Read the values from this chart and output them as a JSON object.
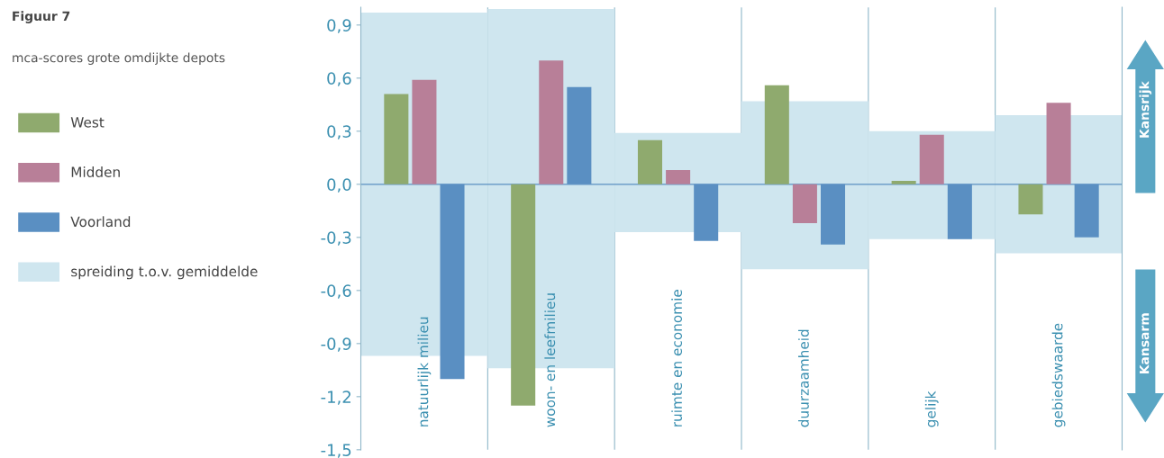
{
  "chart_data": {
    "type": "bar",
    "title": "Figuur 7",
    "subtitle": "mca-scores grote omdijkte depots",
    "categories": [
      "natuurlijk milieu",
      "woon- en leefmilieu",
      "ruimte en economie",
      "duurzaamheid",
      "gelijk",
      "gebiedswaarde"
    ],
    "series": [
      {
        "name": "spreiding t.o.v. gemiddelde",
        "type": "bar",
        "color": "#cfe6ef",
        "base": [
          -0.97,
          -1.04,
          -0.27,
          -0.48,
          -0.31,
          -0.39
        ],
        "values": [
          1.94,
          2.03,
          0.56,
          0.95,
          0.61,
          0.78
        ]
      },
      {
        "name": "West",
        "color": "#8faa6e",
        "values": [
          0.51,
          -1.25,
          0.25,
          0.56,
          0.02,
          -0.17
        ]
      },
      {
        "name": "Midden",
        "color": "#b87f98",
        "values": [
          0.59,
          0.7,
          0.08,
          -0.22,
          0.28,
          0.46
        ]
      },
      {
        "name": "Voorland",
        "color": "#5a8fc2",
        "values": [
          -1.1,
          0.55,
          -0.32,
          -0.34,
          -0.31,
          -0.3
        ]
      }
    ],
    "ylim": [
      -1.5,
      1.0
    ],
    "yticks": [
      {
        "value": -1.5,
        "label": "-1,5"
      },
      {
        "value": -1.2,
        "label": "-1,2"
      },
      {
        "value": -0.9,
        "label": "-0,9"
      },
      {
        "value": -0.6,
        "label": "-0,6"
      },
      {
        "value": -0.3,
        "label": "-0,3"
      },
      {
        "value": 0.0,
        "label": "0,0"
      },
      {
        "value": 0.3,
        "label": "0,3"
      },
      {
        "value": 0.6,
        "label": "0,6"
      },
      {
        "value": 0.9,
        "label": "0,9"
      }
    ],
    "ref_lines": [
      {
        "axis": "y",
        "value": 0,
        "color": "#5a8fc2"
      }
    ],
    "annotations": [
      "Kansrijk",
      "Kansarm"
    ],
    "grid": "x",
    "legend": "left"
  }
}
